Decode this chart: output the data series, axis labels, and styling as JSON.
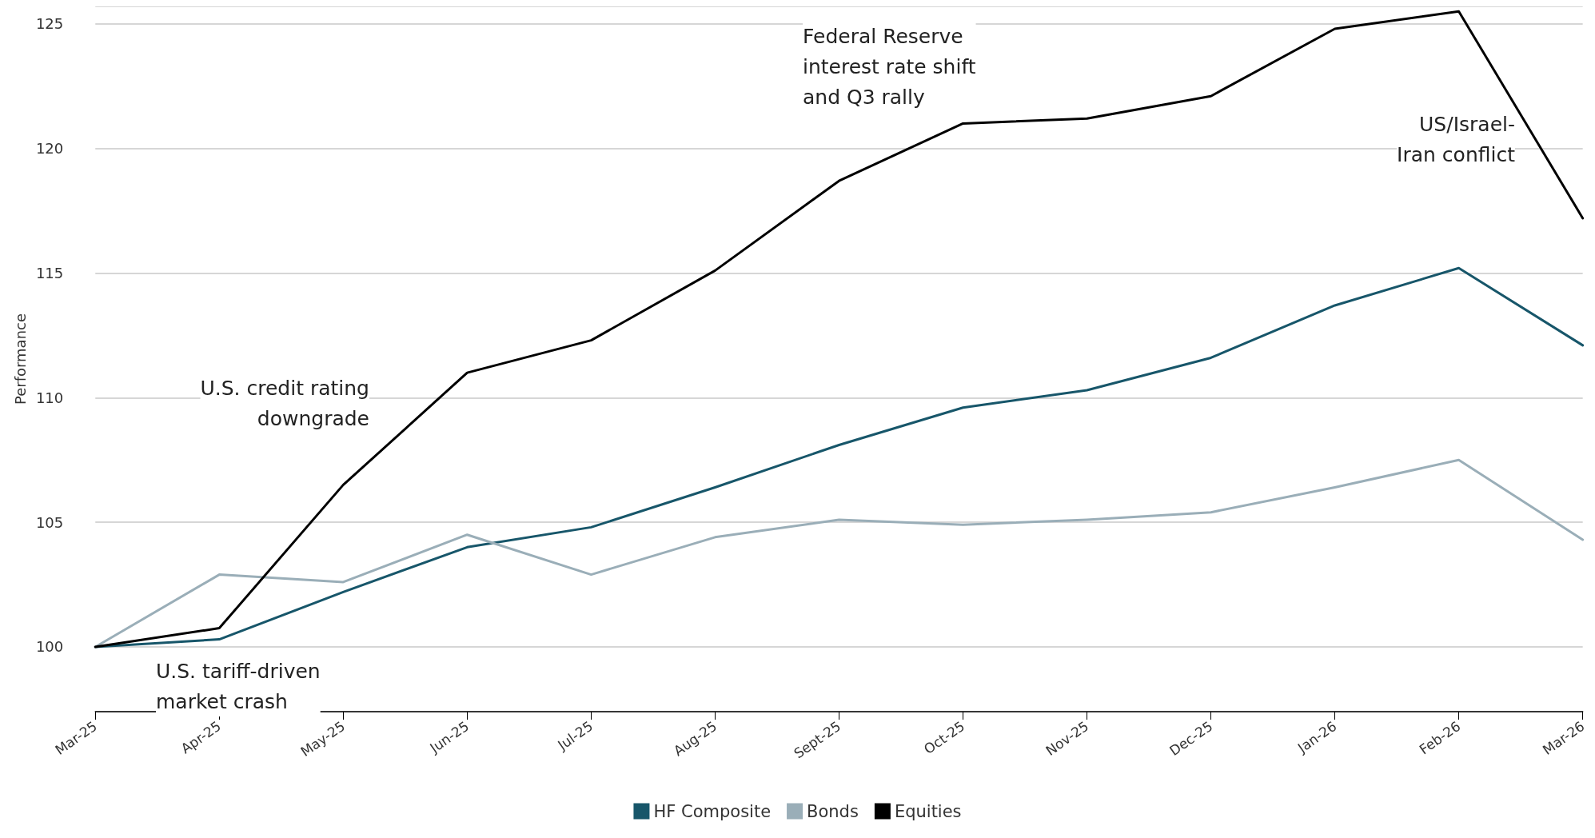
{
  "chart_data": {
    "type": "line",
    "ylabel": "Performance",
    "categories": [
      "Mar-25",
      "Apr-25",
      "May-25",
      "Jun-25",
      "Jul-25",
      "Aug-25",
      "Sept-25",
      "Oct-25",
      "Nov-25",
      "Dec-25",
      "Jan-26",
      "Feb-26",
      "Mar-26"
    ],
    "series": [
      {
        "name": "HF Composite",
        "color": "#17566a",
        "values": [
          100,
          100.3,
          102.2,
          104.0,
          104.8,
          106.4,
          108.1,
          109.6,
          110.3,
          111.6,
          113.7,
          115.2,
          112.1
        ]
      },
      {
        "name": "Bonds",
        "color": "#9aaeb8",
        "values": [
          100,
          102.9,
          102.6,
          104.5,
          102.9,
          104.4,
          105.1,
          104.9,
          105.1,
          105.4,
          106.4,
          107.5,
          104.3
        ]
      },
      {
        "name": "Equities",
        "color": "#000000",
        "values": [
          100,
          100.75,
          106.5,
          111.0,
          112.3,
          115.1,
          118.7,
          121.0,
          121.2,
          122.1,
          124.8,
          125.5,
          117.2
        ]
      }
    ],
    "ylim": [
      97.4,
      125.7
    ],
    "yticks": [
      100,
      105,
      110,
      115,
      120,
      125
    ],
    "grid": "y",
    "legend": "bottom",
    "marker": "none",
    "line_style": "solid",
    "annotations": [
      "U.S. tariff-driven\nmarket crash",
      "U.S. credit rating\ndowngrade",
      "Federal Reserve\ninterest rate shift\nand Q3 rally",
      "US/Israel-\nIran conflict"
    ]
  }
}
